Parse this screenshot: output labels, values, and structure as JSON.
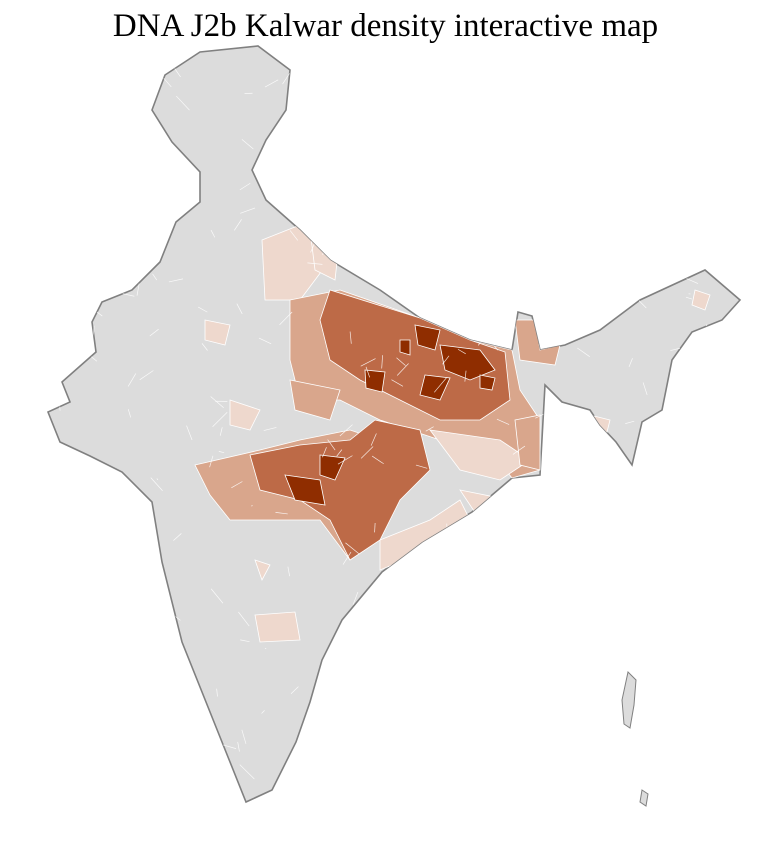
{
  "title": "DNA J2b Kalwar density interactive map",
  "colors": {
    "no_data": "#dcdcdc",
    "very_low": "#eed8cd",
    "low": "#d9a68c",
    "medium": "#bd6a47",
    "high": "#8f2d00",
    "state_border": "#808080",
    "district_border": "#ffffff"
  }
}
